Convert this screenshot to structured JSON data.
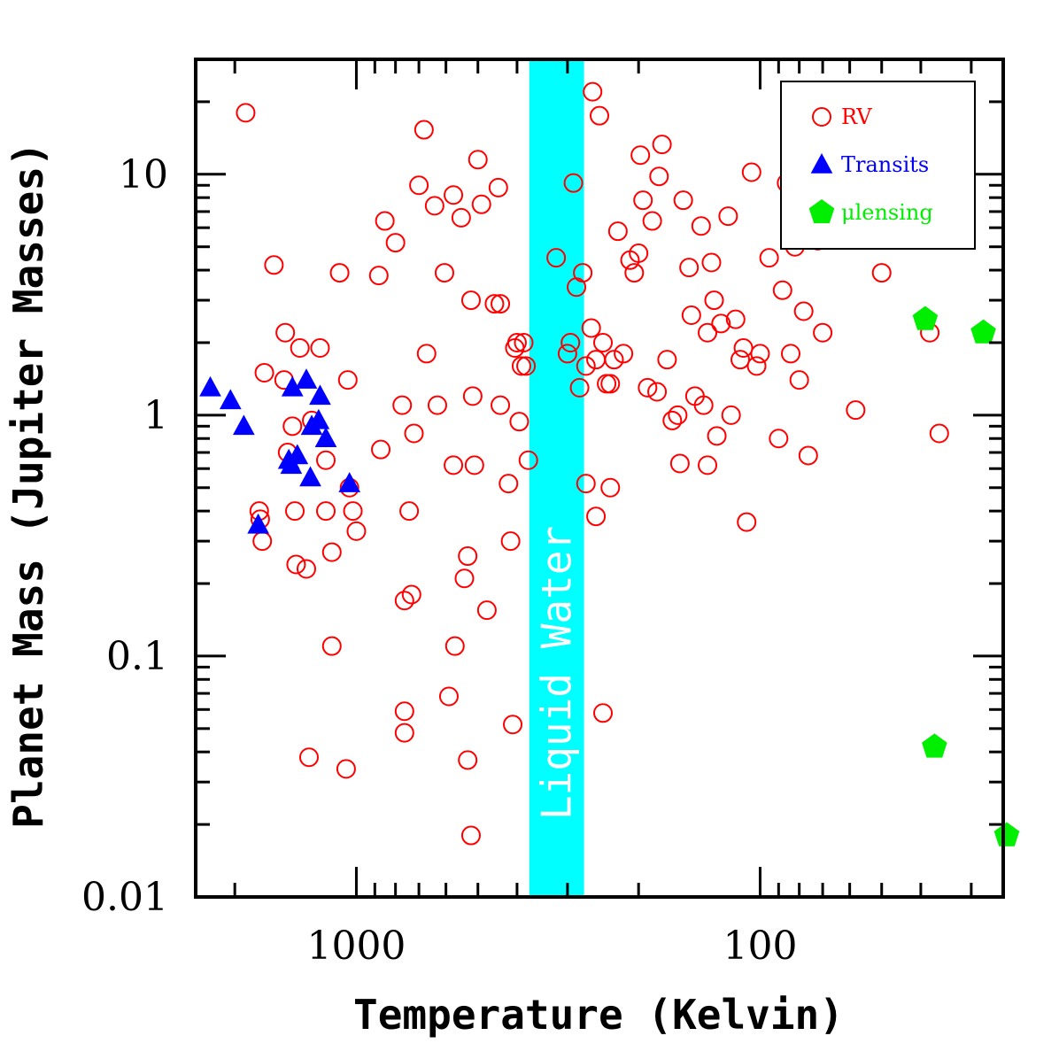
{
  "chart_data": {
    "type": "scatter",
    "xlabel": "Temperature (Kelvin)",
    "ylabel": "Planet Mass (Jupiter Masses)",
    "x_scale": "log",
    "x_reversed": true,
    "y_scale": "log",
    "xlim": [
      2500,
      25
    ],
    "ylim": [
      0.01,
      30
    ],
    "x_ticks": [
      {
        "value": 1000,
        "label": "1000"
      },
      {
        "value": 100,
        "label": "100"
      }
    ],
    "y_ticks": [
      {
        "value": 10,
        "label": "10"
      },
      {
        "value": 1,
        "label": "1"
      },
      {
        "value": 0.1,
        "label": "0.1"
      },
      {
        "value": 0.01,
        "label": "0.01"
      }
    ],
    "band": {
      "label": "Liquid Water",
      "x_range": [
        373,
        273
      ],
      "color": "#00ffff"
    },
    "legend_position": "top-right",
    "series": [
      {
        "name": "RV",
        "marker": "open-circle",
        "color": "#ff0000",
        "points": [
          [
            1880,
            18
          ],
          [
            1690,
            1.5
          ],
          [
            1600,
            4.2
          ],
          [
            1740,
            0.4
          ],
          [
            1730,
            0.37
          ],
          [
            1710,
            0.3
          ],
          [
            1500,
            2.2
          ],
          [
            1510,
            1.4
          ],
          [
            1440,
            0.9
          ],
          [
            1480,
            0.7
          ],
          [
            1410,
            0.24
          ],
          [
            1420,
            0.4
          ],
          [
            1330,
            0.23
          ],
          [
            1380,
            1.9
          ],
          [
            1290,
            0.95
          ],
          [
            1230,
            1.9
          ],
          [
            1190,
            0.65
          ],
          [
            1150,
            0.27
          ],
          [
            1190,
            0.4
          ],
          [
            1100,
            3.9
          ],
          [
            1050,
            1.4
          ],
          [
            1040,
            0.5
          ],
          [
            1020,
            0.4
          ],
          [
            1000,
            0.33
          ],
          [
            1150,
            0.11
          ],
          [
            1310,
            0.038
          ],
          [
            1060,
            0.034
          ],
          [
            870,
            0.72
          ],
          [
            880,
            3.8
          ],
          [
            850,
            6.4
          ],
          [
            800,
            5.2
          ],
          [
            770,
            1.1
          ],
          [
            740,
            0.4
          ],
          [
            720,
            0.84
          ],
          [
            700,
            9.0
          ],
          [
            680,
            15.3
          ],
          [
            670,
            1.8
          ],
          [
            640,
            7.4
          ],
          [
            630,
            1.1
          ],
          [
            605,
            3.9
          ],
          [
            575,
            8.2
          ],
          [
            575,
            0.62
          ],
          [
            570,
            0.11
          ],
          [
            550,
            6.6
          ],
          [
            540,
            0.21
          ],
          [
            530,
            0.26
          ],
          [
            520,
            3.0
          ],
          [
            515,
            1.2
          ],
          [
            510,
            0.62
          ],
          [
            500,
            11.5
          ],
          [
            490,
            7.5
          ],
          [
            475,
            0.155
          ],
          [
            455,
            2.9
          ],
          [
            445,
            8.8
          ],
          [
            440,
            1.1
          ],
          [
            440,
            2.9
          ],
          [
            420,
            0.52
          ],
          [
            415,
            0.3
          ],
          [
            405,
            1.9
          ],
          [
            400,
            2.0
          ],
          [
            395,
            0.94
          ],
          [
            390,
            1.6
          ],
          [
            385,
            2.0
          ],
          [
            380,
            1.6
          ],
          [
            375,
            0.65
          ],
          [
            300,
            1.8
          ],
          [
            290,
            9.2
          ],
          [
            280,
            1.3
          ],
          [
            285,
            3.4
          ],
          [
            275,
            3.9
          ],
          [
            270,
            1.6
          ],
          [
            262,
            2.3
          ],
          [
            255,
            1.7
          ],
          [
            250,
            17.5
          ],
          [
            245,
            2.0
          ],
          [
            235,
            1.35
          ],
          [
            230,
            1.7
          ],
          [
            225,
            5.8
          ],
          [
            218,
            1.8
          ],
          [
            210,
            4.4
          ],
          [
            205,
            3.9
          ],
          [
            200,
            4.7
          ],
          [
            198,
            12.0
          ],
          [
            195,
            7.8
          ],
          [
            190,
            1.3
          ],
          [
            185,
            6.4
          ],
          [
            180,
            1.25
          ],
          [
            178,
            9.8
          ],
          [
            175,
            13.3
          ],
          [
            170,
            1.7
          ],
          [
            165,
            0.95
          ],
          [
            160,
            1.0
          ],
          [
            158,
            0.63
          ],
          [
            155,
            7.8
          ],
          [
            150,
            4.1
          ],
          [
            148,
            2.6
          ],
          [
            145,
            1.2
          ],
          [
            140,
            6.1
          ],
          [
            138,
            1.1
          ],
          [
            135,
            0.62
          ],
          [
            132,
            4.3
          ],
          [
            130,
            3.0
          ],
          [
            128,
            0.82
          ],
          [
            125,
            2.4
          ],
          [
            120,
            6.7
          ],
          [
            118,
            1.0
          ],
          [
            115,
            2.5
          ],
          [
            112,
            1.7
          ],
          [
            110,
            1.9
          ],
          [
            108,
            0.36
          ],
          [
            105,
            10.2
          ],
          [
            100,
            1.8
          ],
          [
            95,
            4.5
          ],
          [
            90,
            0.8
          ],
          [
            88,
            3.3
          ],
          [
            86,
            9.2
          ],
          [
            84,
            1.8
          ],
          [
            82,
            5.0
          ],
          [
            80,
            1.4
          ],
          [
            78,
            2.7
          ],
          [
            76,
            0.68
          ],
          [
            74,
            10.3
          ],
          [
            72,
            5.3
          ],
          [
            70,
            2.2
          ],
          [
            58,
            1.05
          ],
          [
            50,
            3.9
          ],
          [
            38,
            2.2
          ],
          [
            36,
            0.84
          ],
          [
            760,
            0.17
          ],
          [
            730,
            0.18
          ],
          [
            760,
            0.059
          ],
          [
            760,
            0.048
          ],
          [
            590,
            0.068
          ],
          [
            530,
            0.037
          ],
          [
            520,
            0.018
          ],
          [
            410,
            0.052
          ],
          [
            270,
            0.52
          ],
          [
            255,
            0.38
          ],
          [
            245,
            0.058
          ],
          [
            260,
            22
          ],
          [
            320,
            4.5
          ],
          [
            295,
            2.0
          ],
          [
            240,
            1.35
          ],
          [
            235,
            0.5
          ],
          [
            135,
            2.2
          ],
          [
            102,
            1.6
          ]
        ]
      },
      {
        "name": "Transits",
        "marker": "filled-triangle",
        "color": "#0000ff",
        "points": [
          [
            2300,
            1.3
          ],
          [
            2050,
            1.15
          ],
          [
            1900,
            0.9
          ],
          [
            1750,
            0.35
          ],
          [
            1470,
            0.65
          ],
          [
            1450,
            0.62
          ],
          [
            1400,
            0.68
          ],
          [
            1440,
            1.3
          ],
          [
            1330,
            1.4
          ],
          [
            1300,
            0.55
          ],
          [
            1290,
            0.9
          ],
          [
            1240,
            0.95
          ],
          [
            1230,
            1.2
          ],
          [
            1190,
            0.8
          ],
          [
            1040,
            0.52
          ]
        ]
      },
      {
        "name": "μlensing",
        "marker": "filled-pentagon",
        "color": "#00ee00",
        "points": [
          [
            39,
            2.5
          ],
          [
            28,
            2.2
          ],
          [
            37,
            0.042
          ],
          [
            24.5,
            0.018
          ]
        ]
      }
    ]
  }
}
